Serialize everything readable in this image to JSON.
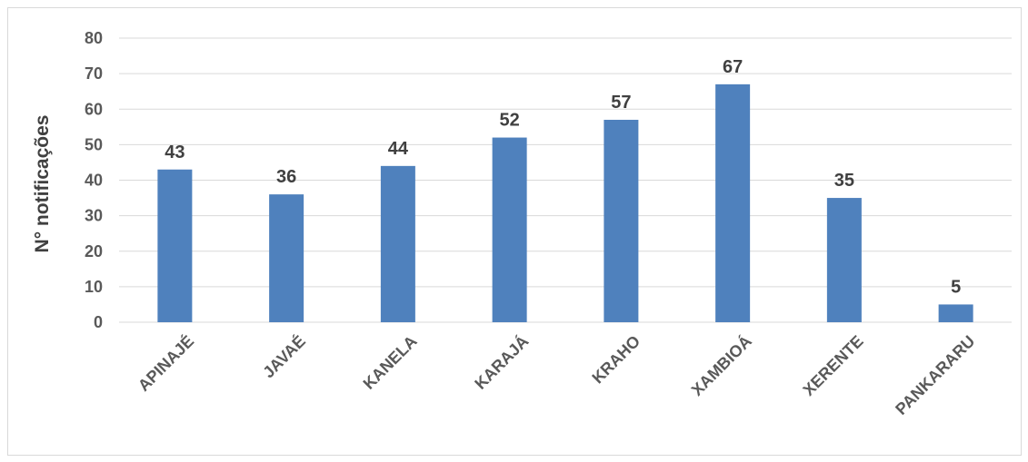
{
  "chart_data": {
    "type": "bar",
    "title": "",
    "xlabel": "",
    "ylabel": "N° notificações",
    "categories": [
      "APINAJÉ",
      "JAVAÉ",
      "KANELA",
      "KARAJÁ",
      "KRAHO",
      "XAMBIOÁ",
      "XERENTE",
      "PANKARARU"
    ],
    "values": [
      43,
      36,
      44,
      52,
      57,
      67,
      35,
      5
    ],
    "ylim": [
      0,
      80
    ],
    "yticks": [
      0,
      10,
      20,
      30,
      40,
      50,
      60,
      70,
      80
    ],
    "grid": true,
    "legend": "none",
    "bar_color": "#4f81bd",
    "grid_color": "#d9d9d9"
  }
}
